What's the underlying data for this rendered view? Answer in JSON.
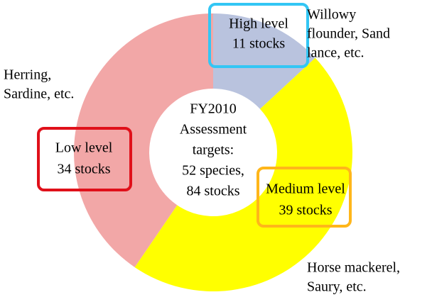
{
  "chart_data": {
    "type": "donut",
    "categories": [
      "High level",
      "Medium level",
      "Low level"
    ],
    "values": [
      11,
      39,
      34
    ],
    "value_labels": [
      "11 stocks",
      "39 stocks",
      "34 stocks"
    ],
    "colors": [
      "#b9c3de",
      "#ffff00",
      "#f2a7a7"
    ],
    "label_border_colors": [
      "#33c6f4",
      "#ffb61a",
      "#e0101a"
    ],
    "center_text": [
      "FY2010",
      "Assessment",
      "targets:",
      "52 species,",
      "84 stocks"
    ],
    "annotations": [
      [
        "Willowy",
        "flounder, Sand",
        "lance, etc."
      ],
      [
        "Horse mackerel,",
        "Saury, etc."
      ],
      [
        "Herring,",
        "Sardine, etc."
      ]
    ]
  }
}
